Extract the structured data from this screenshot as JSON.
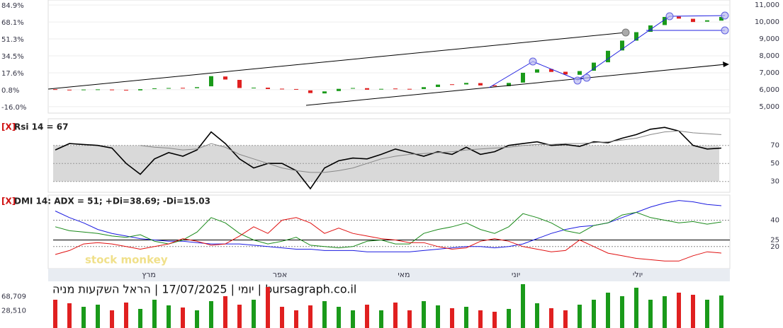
{
  "header": {
    "title": "יומי | 17/07/2025 | הראל השקעות מניה | bursagraph.co.il"
  },
  "watermark": "stock monkey",
  "months": [
    "מרץ",
    "אפר",
    "מאי",
    "יוני",
    "יולי"
  ],
  "chart_data": [
    {
      "type": "candlestick",
      "open": [
        6030,
        6000,
        5990,
        6000,
        6010,
        5990,
        5960,
        6040,
        6080,
        6110,
        6090,
        6200,
        6780,
        6580,
        6100,
        6120,
        6060,
        6040,
        5960,
        5780,
        5920,
        6060,
        6090,
        6010,
        6070,
        6050,
        6040,
        6160,
        6320,
        6310,
        6390,
        6260,
        6210,
        6420,
        7010,
        7220,
        7060,
        6880,
        7120,
        7620,
        8320,
        8900,
        9420,
        9820,
        10320,
        10190,
        10020,
        10080
      ],
      "close": [
        6000,
        5980,
        6010,
        6020,
        5990,
        5950,
        6030,
        6080,
        6100,
        6090,
        6150,
        6800,
        6600,
        6100,
        6120,
        6040,
        6050,
        6000,
        5800,
        5900,
        6050,
        6100,
        6000,
        6050,
        6060,
        6030,
        6150,
        6300,
        6300,
        6400,
        6250,
        6200,
        6400,
        7000,
        7200,
        7050,
        6900,
        7100,
        7600,
        8300,
        8900,
        9400,
        9800,
        10300,
        10200,
        10000,
        10100,
        10300
      ],
      "up_color": "#1a9a1a",
      "down_color": "#e02020",
      "ylim": [
        4700,
        11300
      ],
      "yticks": [
        {
          "value": 5000,
          "label": "5,000"
        },
        {
          "value": 6000,
          "label": "6,000"
        },
        {
          "value": 7000,
          "label": "7,000"
        },
        {
          "value": 8000,
          "label": "8,000"
        },
        {
          "value": 9000,
          "label": "9,000"
        },
        {
          "value": 10000,
          "label": "10,000"
        },
        {
          "value": 11000,
          "label": "11,000"
        }
      ],
      "y2lim": [
        -20.2,
        90.5
      ],
      "y2ticks": [
        {
          "value": -16.0,
          "label": "-16.0%"
        },
        {
          "value": 0.8,
          "label": "0.8%"
        },
        {
          "value": 17.6,
          "label": "17.6%"
        },
        {
          "value": 34.5,
          "label": "34.5%"
        },
        {
          "value": 51.3,
          "label": "51.3%"
        },
        {
          "value": 68.1,
          "label": "68.1%"
        },
        {
          "value": 84.9,
          "label": "84.9%"
        }
      ]
    },
    {
      "type": "line",
      "close_button": "[X]",
      "label": "Rsi 14 = 67",
      "series": [
        {
          "color": "#000000",
          "values": [
            65,
            72,
            71,
            70,
            67,
            50,
            38,
            55,
            62,
            58,
            65,
            85,
            72,
            55,
            45,
            50,
            50,
            42,
            22,
            45,
            53,
            56,
            55,
            60,
            66,
            62,
            58,
            63,
            60,
            68,
            60,
            63,
            70,
            72,
            74,
            70,
            71,
            69,
            74,
            73,
            78,
            82,
            88,
            90,
            86,
            70,
            66,
            67
          ]
        },
        {
          "color": "#888888",
          "values": [
            null,
            null,
            null,
            null,
            null,
            null,
            70,
            68,
            67,
            65,
            66,
            72,
            68,
            60,
            55,
            50,
            45,
            42,
            40,
            40,
            42,
            45,
            50,
            55,
            58,
            60,
            61,
            62,
            63,
            65,
            66,
            67,
            68,
            70,
            71,
            71,
            72,
            72,
            73,
            74,
            76,
            78,
            82,
            85,
            86,
            84,
            83,
            82
          ]
        }
      ],
      "band": [
        30,
        70
      ],
      "ylim": [
        18,
        98
      ],
      "yticks": [
        30,
        50,
        70
      ]
    },
    {
      "type": "line",
      "close_button": "[X]",
      "label": "DMI 14: ADX = 51; +Di=38.69; -Di=15.03",
      "series": [
        {
          "color": "#1a1ae0",
          "values": [
            47,
            42,
            38,
            33,
            30,
            28,
            26,
            25,
            24,
            24,
            23,
            22,
            22,
            22,
            21,
            20,
            19,
            18,
            18,
            17,
            17,
            17,
            16,
            16,
            16,
            16,
            17,
            18,
            19,
            20,
            20,
            19,
            20,
            22,
            26,
            30,
            33,
            35,
            36,
            38,
            42,
            46,
            50,
            53,
            55,
            54,
            52,
            51
          ]
        },
        {
          "color": "#1a8a1a",
          "values": [
            35,
            32,
            31,
            30,
            28,
            27,
            29,
            24,
            22,
            25,
            31,
            42,
            38,
            30,
            25,
            22,
            24,
            27,
            21,
            20,
            19,
            20,
            24,
            25,
            22,
            22,
            30,
            33,
            35,
            38,
            33,
            30,
            35,
            45,
            42,
            38,
            32,
            30,
            36,
            38,
            44,
            46,
            42,
            40,
            38,
            39,
            37,
            38.69
          ]
        },
        {
          "color": "#e01010",
          "values": [
            14,
            17,
            22,
            23,
            22,
            20,
            18,
            20,
            22,
            26,
            24,
            21,
            22,
            28,
            35,
            30,
            40,
            42,
            38,
            30,
            34,
            30,
            28,
            26,
            25,
            23,
            23,
            20,
            18,
            19,
            24,
            26,
            24,
            20,
            18,
            16,
            17,
            25,
            20,
            15,
            13,
            11,
            10,
            9,
            9,
            13,
            16,
            15.03
          ]
        }
      ],
      "ylim": [
        7,
        58
      ],
      "yticks": [
        20,
        25,
        40
      ]
    },
    {
      "type": "bar",
      "values": [
        60000,
        50000,
        40000,
        46000,
        30000,
        52000,
        34000,
        60000,
        44000,
        38000,
        30000,
        56000,
        70000,
        46000,
        60000,
        96000,
        40000,
        30000,
        44000,
        56000,
        40000,
        30000,
        46000,
        30000,
        52000,
        30000,
        56000,
        44000,
        36000,
        40000,
        30000,
        26000,
        34000,
        104000,
        50000,
        36000,
        30000,
        46000,
        60000,
        80000,
        70000,
        94000,
        60000,
        70000,
        80000,
        74000,
        60000,
        72000
      ],
      "ylim": [
        -20000,
        108000
      ],
      "yticks": [
        {
          "value": 28510,
          "label": "28,510"
        },
        {
          "value": 68709,
          "label": "68,709"
        }
      ]
    }
  ]
}
